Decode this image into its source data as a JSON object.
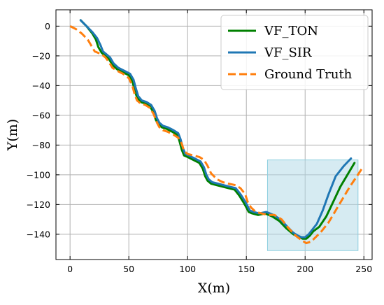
{
  "chart_data": {
    "type": "line",
    "title": "",
    "xlabel": "X(m)",
    "ylabel": "Y(m)",
    "xlim": [
      -12,
      257
    ],
    "ylim": [
      -157,
      11
    ],
    "xticks": [
      0,
      50,
      100,
      150,
      200,
      250
    ],
    "yticks": [
      0,
      -20,
      -40,
      -60,
      -80,
      -100,
      -120,
      -140
    ],
    "xtick_labels": [
      "0",
      "50",
      "100",
      "150",
      "200",
      "250"
    ],
    "ytick_labels": [
      "0",
      "−20",
      "−40",
      "−60",
      "−80",
      "−100",
      "−120",
      "−140"
    ],
    "grid": true,
    "legend_position": "top-right",
    "highlight_region": {
      "x": [
        168,
        245
      ],
      "y": [
        -151,
        -90
      ],
      "color": "#add8e6"
    },
    "series": [
      {
        "name": "VF_TON",
        "color": "#008000",
        "style": "solid",
        "x": [
          9,
          14,
          19,
          22,
          24,
          27,
          30,
          33,
          36,
          40,
          45,
          50,
          53,
          55,
          57,
          60,
          64,
          68,
          71,
          73,
          75,
          78,
          82,
          87,
          91,
          93,
          95,
          97,
          100,
          105,
          110,
          113,
          115,
          117,
          120,
          125,
          130,
          135,
          140,
          144,
          148,
          150,
          152,
          155,
          160,
          166,
          172,
          178,
          184,
          190,
          195,
          198,
          201,
          204,
          207,
          212,
          218,
          224,
          230,
          236,
          242
        ],
        "y": [
          4,
          0,
          -5,
          -9,
          -14,
          -18,
          -20,
          -22,
          -26,
          -29,
          -31,
          -33,
          -37,
          -43,
          -48,
          -51,
          -52,
          -54,
          -58,
          -63,
          -66,
          -68,
          -69,
          -71,
          -73,
          -77,
          -83,
          -87,
          -88,
          -90,
          -92,
          -96,
          -101,
          -104,
          -106,
          -107,
          -108,
          -109,
          -110,
          -114,
          -119,
          -122,
          -125,
          -126,
          -127,
          -126,
          -128,
          -131,
          -136,
          -140,
          -142,
          -143,
          -143,
          -141,
          -138,
          -135,
          -128,
          -118,
          -108,
          -100,
          -92
        ]
      },
      {
        "name": "VF_SIR",
        "color": "#1f77b4",
        "style": "solid",
        "x": [
          9,
          14,
          19,
          23,
          26,
          28,
          31,
          34,
          37,
          41,
          46,
          51,
          54,
          56,
          58,
          61,
          65,
          69,
          72,
          74,
          76,
          79,
          83,
          88,
          92,
          94,
          96,
          98,
          101,
          106,
          111,
          114,
          116,
          118,
          121,
          126,
          131,
          136,
          141,
          145,
          149,
          151,
          153,
          156,
          161,
          167,
          173,
          179,
          185,
          190,
          194,
          197,
          200,
          203,
          206,
          210,
          215,
          220,
          226,
          233,
          239
        ],
        "y": [
          4,
          0,
          -4,
          -8,
          -13,
          -17,
          -19,
          -21,
          -25,
          -28,
          -30,
          -32,
          -36,
          -42,
          -47,
          -50,
          -51,
          -53,
          -57,
          -62,
          -65,
          -67,
          -68,
          -70,
          -72,
          -76,
          -82,
          -86,
          -87,
          -89,
          -91,
          -95,
          -100,
          -103,
          -105,
          -106,
          -107,
          -108,
          -109,
          -113,
          -118,
          -121,
          -124,
          -125,
          -126,
          -125,
          -127,
          -130,
          -135,
          -139,
          -141,
          -142,
          -142,
          -140,
          -137,
          -133,
          -124,
          -113,
          -101,
          -94,
          -89
        ]
      },
      {
        "name": "Ground Truth",
        "color": "#ff7f0e",
        "style": "dashed",
        "x": [
          0,
          5,
          10,
          15,
          18,
          21,
          24,
          27,
          30,
          33,
          36,
          40,
          45,
          50,
          53,
          55,
          57,
          60,
          64,
          68,
          71,
          74,
          76,
          79,
          83,
          88,
          92,
          95,
          97,
          100,
          105,
          110,
          114,
          117,
          120,
          125,
          130,
          135,
          141,
          145,
          149,
          151,
          154,
          158,
          163,
          168,
          174,
          180,
          186,
          192,
          197,
          201,
          205,
          209,
          214,
          220,
          226,
          232,
          238,
          244,
          249
        ],
        "y": [
          0,
          -2,
          -5,
          -9,
          -13,
          -17,
          -18,
          -19,
          -21,
          -24,
          -28,
          -30,
          -32,
          -35,
          -40,
          -46,
          -50,
          -52,
          -53,
          -55,
          -59,
          -65,
          -68,
          -70,
          -71,
          -73,
          -75,
          -79,
          -84,
          -86,
          -87,
          -88,
          -90,
          -94,
          -99,
          -103,
          -105,
          -106,
          -107,
          -109,
          -113,
          -118,
          -122,
          -125,
          -126,
          -127,
          -127,
          -130,
          -136,
          -141,
          -144,
          -146,
          -145,
          -142,
          -138,
          -132,
          -124,
          -116,
          -108,
          -101,
          -95
        ]
      }
    ]
  }
}
